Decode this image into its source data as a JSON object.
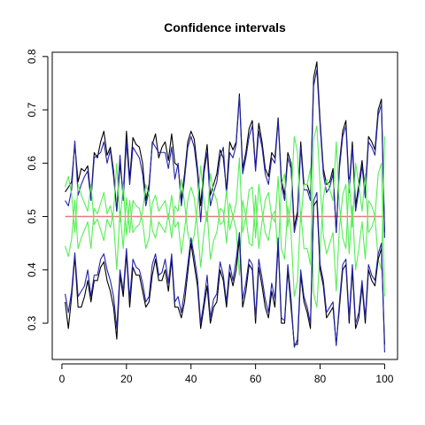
{
  "chart_data": {
    "type": "line",
    "title": "Confidence intervals",
    "xlabel": "",
    "ylabel": "",
    "xlim": [
      -3,
      104
    ],
    "ylim": [
      0.232,
      0.808
    ],
    "x_ticks": [
      0,
      20,
      40,
      60,
      80,
      100
    ],
    "y_ticks": [
      0.3,
      0.4,
      0.5,
      0.6,
      0.7,
      0.8
    ],
    "x_tick_labels": [
      "0",
      "20",
      "40",
      "60",
      "80",
      "100"
    ],
    "y_tick_labels": [
      "0.3",
      "0.4",
      "0.5",
      "0.6",
      "0.7",
      "0.8"
    ],
    "grid": false,
    "legend": "none",
    "reference_line": {
      "y": 0.5,
      "color": "#e87a7a"
    },
    "x": [
      1,
      2,
      3,
      4,
      5,
      6,
      7,
      8,
      9,
      10,
      11,
      12,
      13,
      14,
      15,
      16,
      17,
      18,
      19,
      20,
      21,
      22,
      23,
      24,
      25,
      26,
      27,
      28,
      29,
      30,
      31,
      32,
      33,
      34,
      35,
      36,
      37,
      38,
      39,
      40,
      41,
      42,
      43,
      44,
      45,
      46,
      47,
      48,
      49,
      50,
      51,
      52,
      53,
      54,
      55,
      56,
      57,
      58,
      59,
      60,
      61,
      62,
      63,
      64,
      65,
      66,
      67,
      68,
      69,
      70,
      71,
      72,
      73,
      74,
      75,
      76,
      77,
      78,
      79,
      80,
      81,
      82,
      83,
      84,
      85,
      86,
      87,
      88,
      89,
      90,
      91,
      92,
      93,
      94,
      95,
      96,
      97,
      98,
      99,
      100
    ],
    "series": [
      {
        "color": "#000000",
        "values": [
          0.546,
          0.555,
          0.565,
          0.636,
          0.565,
          0.59,
          0.585,
          0.595,
          0.535,
          0.62,
          0.61,
          0.64,
          0.66,
          0.615,
          0.63,
          0.585,
          0.51,
          0.6,
          0.54,
          0.66,
          0.57,
          0.648,
          0.635,
          0.63,
          0.6,
          0.53,
          0.56,
          0.635,
          0.655,
          0.61,
          0.63,
          0.64,
          0.605,
          0.655,
          0.6,
          0.595,
          0.53,
          0.58,
          0.64,
          0.66,
          0.645,
          0.59,
          0.52,
          0.59,
          0.635,
          0.54,
          0.56,
          0.58,
          0.625,
          0.61,
          0.55,
          0.64,
          0.625,
          0.64,
          0.73,
          0.59,
          0.62,
          0.665,
          0.68,
          0.59,
          0.675,
          0.64,
          0.59,
          0.575,
          0.62,
          0.61,
          0.685,
          0.57,
          0.54,
          0.62,
          0.6,
          0.48,
          0.51,
          0.64,
          0.56,
          0.56,
          0.54,
          0.76,
          0.79,
          0.68,
          0.59,
          0.56,
          0.565,
          0.59,
          0.47,
          0.6,
          0.66,
          0.68,
          0.555,
          0.64,
          0.52,
          0.56,
          0.605,
          0.545,
          0.65,
          0.64,
          0.625,
          0.7,
          0.72,
          0.47
        ]
      },
      {
        "color": "#2222aa",
        "values": [
          0.53,
          0.52,
          0.55,
          0.642,
          0.54,
          0.56,
          0.575,
          0.585,
          0.53,
          0.61,
          0.615,
          0.62,
          0.64,
          0.6,
          0.625,
          0.575,
          0.51,
          0.615,
          0.53,
          0.64,
          0.56,
          0.63,
          0.62,
          0.61,
          0.58,
          0.52,
          0.55,
          0.64,
          0.63,
          0.62,
          0.62,
          0.62,
          0.59,
          0.63,
          0.57,
          0.6,
          0.52,
          0.57,
          0.63,
          0.65,
          0.63,
          0.58,
          0.49,
          0.58,
          0.62,
          0.52,
          0.545,
          0.565,
          0.61,
          0.63,
          0.54,
          0.62,
          0.61,
          0.635,
          0.725,
          0.58,
          0.61,
          0.65,
          0.67,
          0.585,
          0.66,
          0.63,
          0.58,
          0.56,
          0.61,
          0.6,
          0.68,
          0.56,
          0.53,
          0.61,
          0.59,
          0.47,
          0.5,
          0.63,
          0.55,
          0.55,
          0.53,
          0.745,
          0.775,
          0.67,
          0.58,
          0.545,
          0.555,
          0.58,
          0.47,
          0.59,
          0.65,
          0.67,
          0.545,
          0.63,
          0.51,
          0.55,
          0.595,
          0.535,
          0.64,
          0.63,
          0.615,
          0.69,
          0.71,
          0.46
        ]
      },
      {
        "color": "#55ee55",
        "values": [
          0.445,
          0.425,
          0.458,
          0.53,
          0.44,
          0.46,
          0.475,
          0.49,
          0.44,
          0.515,
          0.505,
          0.525,
          0.545,
          0.505,
          0.52,
          0.49,
          0.4,
          0.51,
          0.44,
          0.535,
          0.47,
          0.53,
          0.52,
          0.515,
          0.49,
          0.44,
          0.46,
          0.525,
          0.54,
          0.51,
          0.52,
          0.53,
          0.495,
          0.54,
          0.48,
          0.49,
          0.43,
          0.475,
          0.53,
          0.555,
          0.535,
          0.48,
          0.405,
          0.47,
          0.51,
          0.42,
          0.455,
          0.47,
          0.515,
          0.51,
          0.45,
          0.525,
          0.5,
          0.525,
          0.61,
          0.47,
          0.5,
          0.55,
          0.555,
          0.46,
          0.56,
          0.51,
          0.47,
          0.455,
          0.5,
          0.49,
          0.575,
          0.44,
          0.42,
          0.52,
          0.47,
          0.35,
          0.38,
          0.51,
          0.44,
          0.44,
          0.41,
          0.645,
          0.67,
          0.56,
          0.465,
          0.43,
          0.45,
          0.47,
          0.36,
          0.48,
          0.54,
          0.56,
          0.43,
          0.52,
          0.4,
          0.44,
          0.49,
          0.42,
          0.53,
          0.52,
          0.5,
          0.58,
          0.6,
          0.35
        ]
      },
      {
        "color": "#55ee55",
        "values": [
          0.555,
          0.575,
          0.542,
          0.47,
          0.56,
          0.54,
          0.525,
          0.51,
          0.56,
          0.485,
          0.495,
          0.475,
          0.455,
          0.495,
          0.48,
          0.51,
          0.6,
          0.49,
          0.56,
          0.465,
          0.53,
          0.47,
          0.48,
          0.485,
          0.51,
          0.56,
          0.54,
          0.475,
          0.46,
          0.49,
          0.48,
          0.47,
          0.505,
          0.46,
          0.52,
          0.51,
          0.57,
          0.525,
          0.47,
          0.445,
          0.465,
          0.52,
          0.595,
          0.53,
          0.49,
          0.58,
          0.545,
          0.53,
          0.485,
          0.49,
          0.55,
          0.475,
          0.5,
          0.475,
          0.39,
          0.53,
          0.5,
          0.45,
          0.445,
          0.54,
          0.44,
          0.49,
          0.53,
          0.545,
          0.5,
          0.51,
          0.425,
          0.56,
          0.58,
          0.48,
          0.53,
          0.65,
          0.62,
          0.49,
          0.56,
          0.56,
          0.59,
          0.355,
          0.33,
          0.44,
          0.535,
          0.57,
          0.55,
          0.53,
          0.64,
          0.52,
          0.46,
          0.44,
          0.57,
          0.48,
          0.6,
          0.56,
          0.51,
          0.58,
          0.47,
          0.48,
          0.5,
          0.42,
          0.4,
          0.65
        ]
      },
      {
        "color": "#000000",
        "values": [
          0.34,
          0.29,
          0.35,
          0.425,
          0.33,
          0.33,
          0.35,
          0.38,
          0.34,
          0.38,
          0.38,
          0.405,
          0.415,
          0.38,
          0.36,
          0.33,
          0.27,
          0.39,
          0.35,
          0.43,
          0.33,
          0.405,
          0.39,
          0.39,
          0.36,
          0.33,
          0.34,
          0.39,
          0.42,
          0.38,
          0.38,
          0.4,
          0.36,
          0.42,
          0.33,
          0.33,
          0.31,
          0.34,
          0.395,
          0.45,
          0.41,
          0.37,
          0.29,
          0.33,
          0.37,
          0.3,
          0.33,
          0.34,
          0.4,
          0.38,
          0.33,
          0.395,
          0.37,
          0.4,
          0.46,
          0.33,
          0.36,
          0.41,
          0.4,
          0.3,
          0.405,
          0.37,
          0.33,
          0.31,
          0.36,
          0.33,
          0.45,
          0.3,
          0.3,
          0.4,
          0.33,
          0.26,
          0.26,
          0.39,
          0.34,
          0.32,
          0.29,
          0.52,
          0.53,
          0.4,
          0.37,
          0.31,
          0.32,
          0.33,
          0.26,
          0.33,
          0.4,
          0.41,
          0.3,
          0.4,
          0.29,
          0.31,
          0.37,
          0.3,
          0.4,
          0.38,
          0.37,
          0.42,
          0.44,
          0.26
        ]
      },
      {
        "color": "#2222aa",
        "values": [
          0.355,
          0.32,
          0.36,
          0.432,
          0.35,
          0.36,
          0.37,
          0.4,
          0.35,
          0.39,
          0.39,
          0.42,
          0.43,
          0.4,
          0.38,
          0.35,
          0.29,
          0.4,
          0.36,
          0.44,
          0.345,
          0.42,
          0.405,
          0.4,
          0.375,
          0.34,
          0.35,
          0.41,
          0.43,
          0.39,
          0.395,
          0.42,
          0.375,
          0.43,
          0.34,
          0.35,
          0.32,
          0.36,
          0.41,
          0.46,
          0.425,
          0.385,
          0.3,
          0.34,
          0.39,
          0.31,
          0.345,
          0.355,
          0.415,
          0.39,
          0.34,
          0.41,
          0.38,
          0.42,
          0.47,
          0.345,
          0.375,
          0.42,
          0.41,
          0.31,
          0.42,
          0.385,
          0.345,
          0.32,
          0.375,
          0.345,
          0.46,
          0.31,
          0.305,
          0.41,
          0.345,
          0.255,
          0.27,
          0.4,
          0.35,
          0.33,
          0.3,
          0.53,
          0.545,
          0.41,
          0.38,
          0.32,
          0.33,
          0.34,
          0.258,
          0.34,
          0.41,
          0.42,
          0.31,
          0.41,
          0.3,
          0.32,
          0.38,
          0.31,
          0.41,
          0.39,
          0.38,
          0.43,
          0.45,
          0.245
        ]
      }
    ]
  }
}
